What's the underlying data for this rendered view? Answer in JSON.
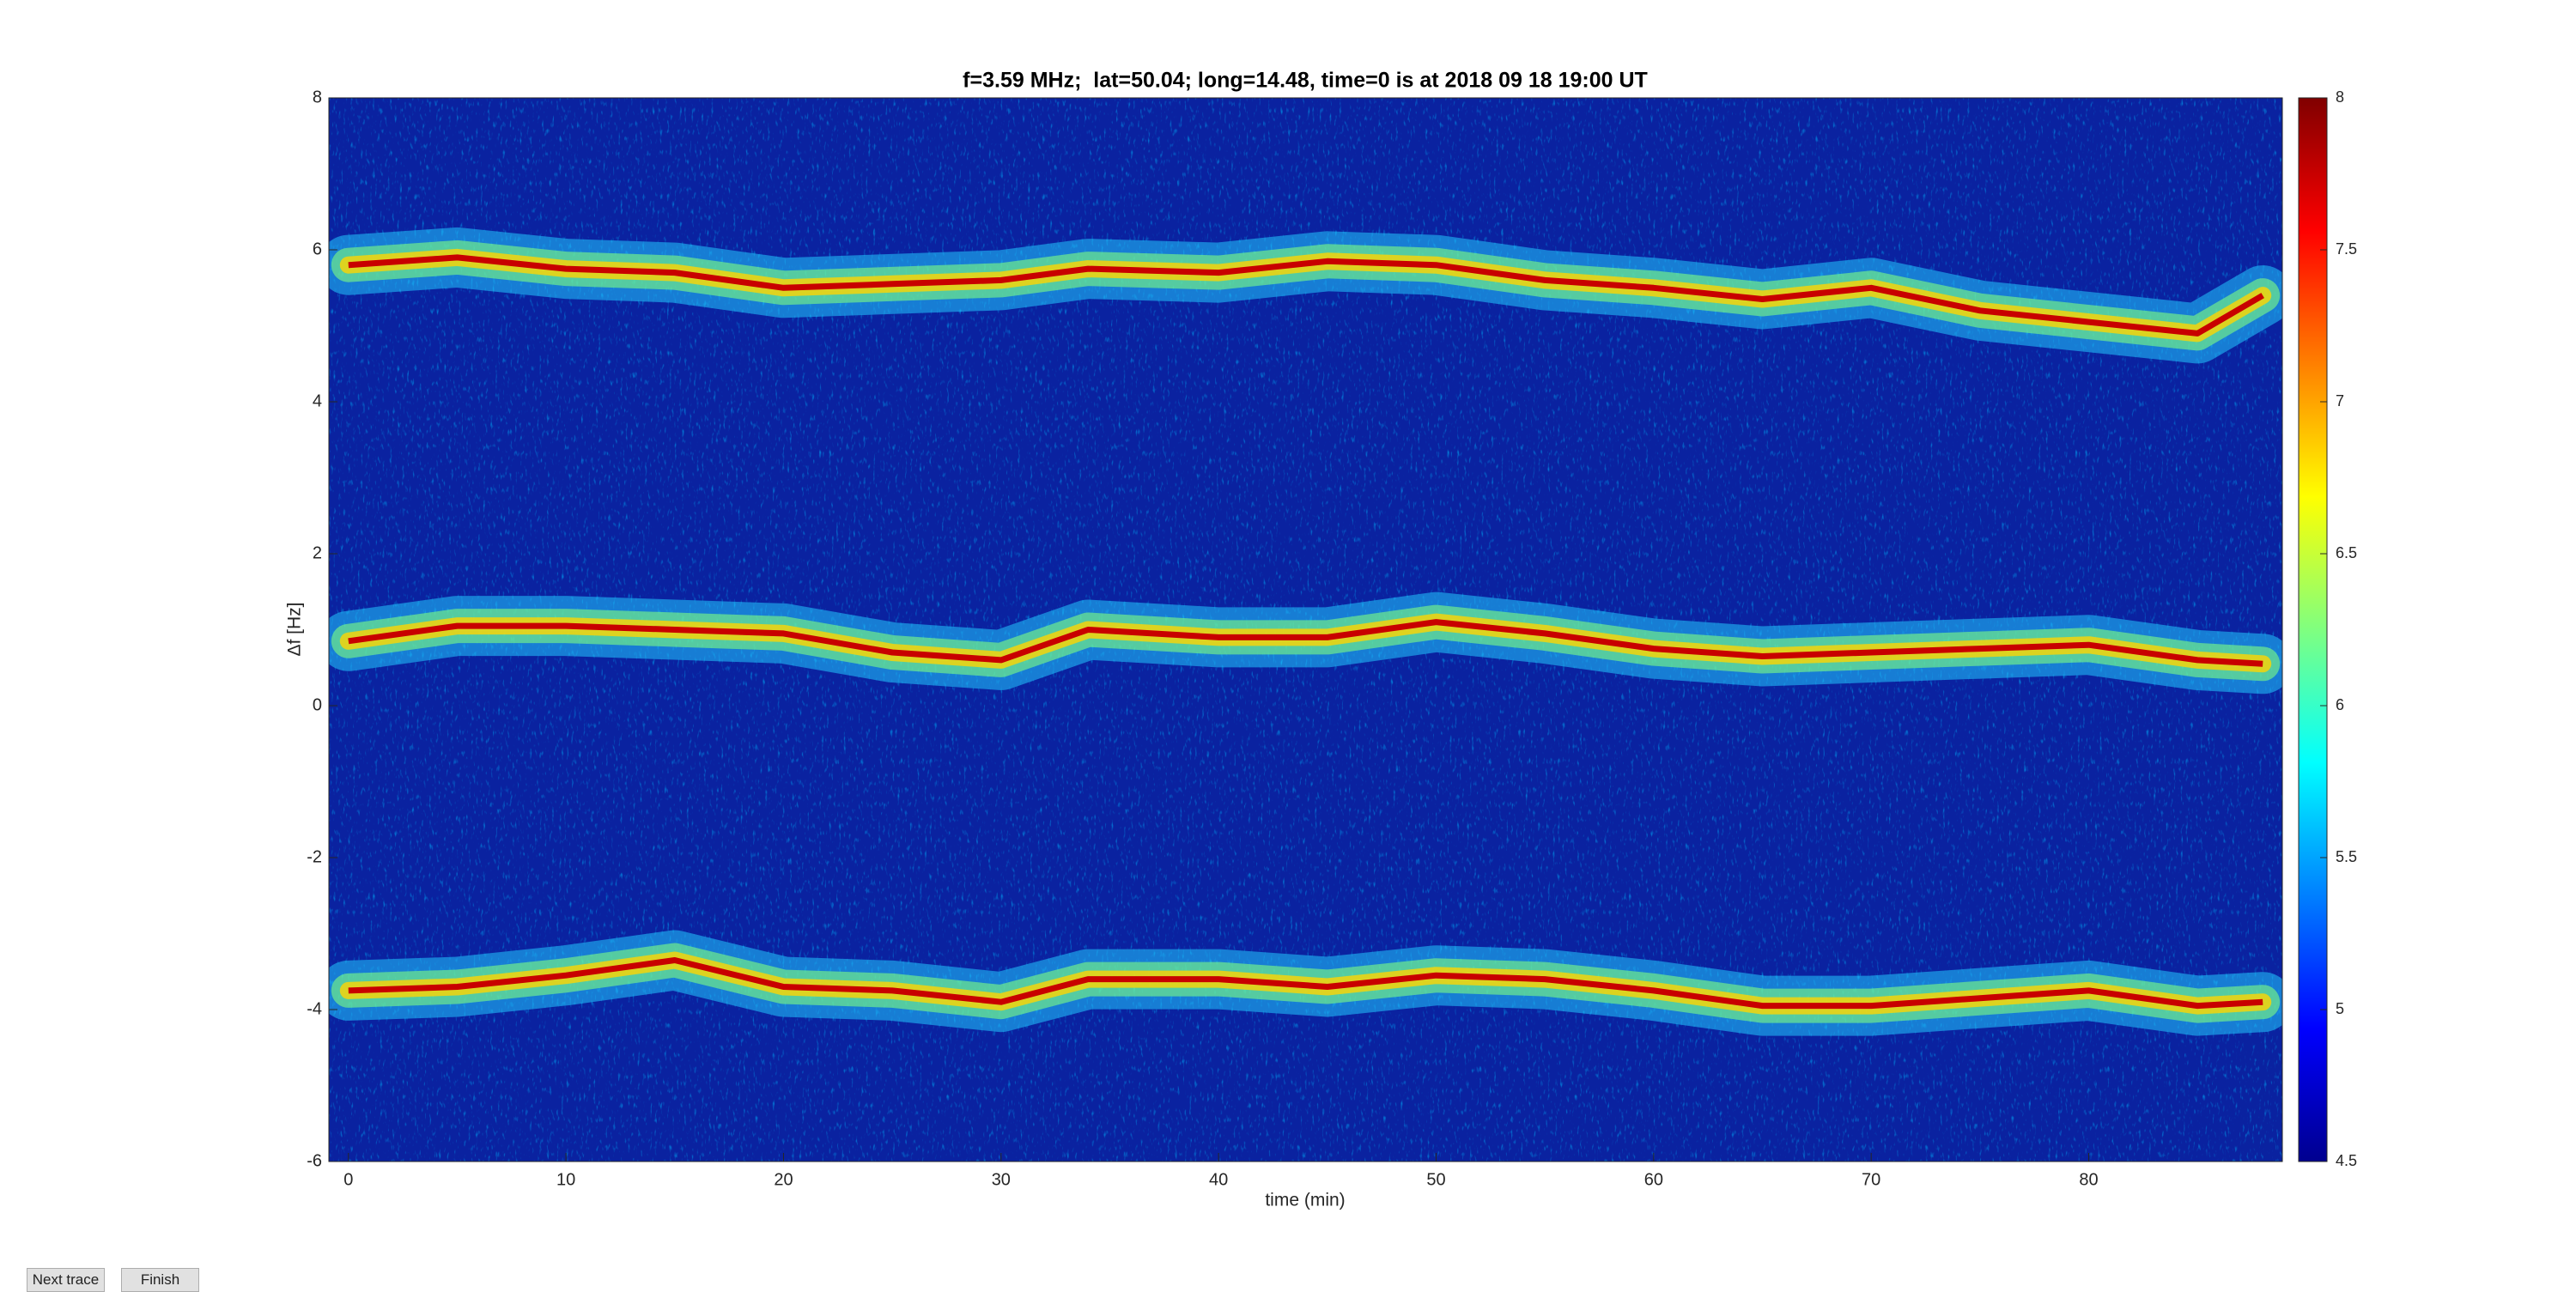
{
  "chart_data": {
    "type": "line",
    "title": "f=3.59 MHz;  lat=50.04; long=14.48, time=0 is at 2018 09 18 19:00 UT",
    "x_label": "time (min)",
    "y_label": "Δf [Hz]",
    "x": [
      0,
      5,
      10,
      15,
      20,
      25,
      30,
      34,
      40,
      45,
      50,
      55,
      60,
      65,
      70,
      75,
      80,
      85,
      88
    ],
    "series": [
      {
        "color": "#c80000",
        "values": [
          5.8,
          5.9,
          5.75,
          5.7,
          5.5,
          5.55,
          5.6,
          5.75,
          5.7,
          5.85,
          5.8,
          5.6,
          5.5,
          5.35,
          5.5,
          5.2,
          5.05,
          4.9,
          5.4
        ]
      },
      {
        "color": "#c80000",
        "values": [
          0.85,
          1.05,
          1.05,
          1.0,
          0.95,
          0.7,
          0.6,
          1.0,
          0.9,
          0.9,
          1.1,
          0.95,
          0.75,
          0.65,
          0.7,
          0.75,
          0.8,
          0.6,
          0.55
        ]
      },
      {
        "color": "#c80000",
        "values": [
          -3.75,
          -3.7,
          -3.55,
          -3.35,
          -3.7,
          -3.75,
          -3.9,
          -3.6,
          -3.6,
          -3.7,
          -3.55,
          -3.6,
          -3.75,
          -3.95,
          -3.95,
          -3.85,
          -3.75,
          -3.95,
          -3.9
        ]
      }
    ],
    "xlim": [
      -0.9,
      88.9
    ],
    "xticks": [
      0,
      10,
      20,
      30,
      40,
      50,
      60,
      70,
      80
    ],
    "ylim": [
      -6,
      8
    ],
    "yticks": [
      -6,
      -4,
      -2,
      0,
      2,
      4,
      6,
      8
    ],
    "background_color": "#0a22a0",
    "colorbar": {
      "lim": [
        4.5,
        8
      ],
      "ticks": [
        4.5,
        5,
        5.5,
        6,
        6.5,
        7,
        7.5,
        8
      ]
    }
  },
  "buttons": [
    "Next trace",
    "Finish"
  ]
}
